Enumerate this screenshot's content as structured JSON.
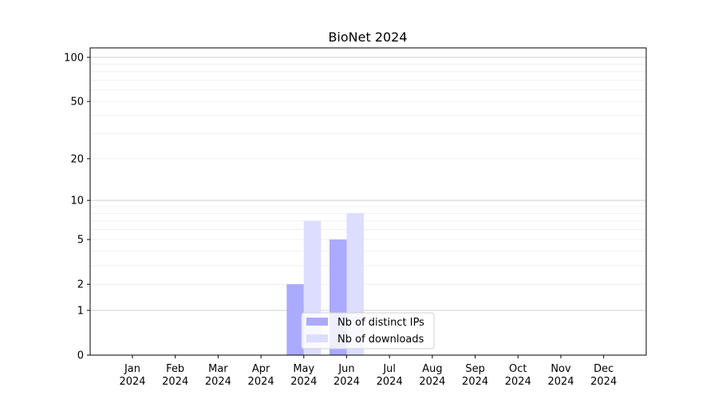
{
  "chart_data": {
    "type": "bar",
    "title": "BioNet 2024",
    "xlabel": "",
    "ylabel": "",
    "yscale": "log(1+y)",
    "ylim": [
      0,
      116
    ],
    "yticks": [
      0,
      1,
      2,
      5,
      10,
      20,
      50,
      100
    ],
    "grid": true,
    "legend_position": "lower-center",
    "categories": [
      "Jan\n2024",
      "Feb\n2024",
      "Mar\n2024",
      "Apr\n2024",
      "May\n2024",
      "Jun\n2024",
      "Jul\n2024",
      "Aug\n2024",
      "Sep\n2024",
      "Oct\n2024",
      "Nov\n2024",
      "Dec\n2024"
    ],
    "series": [
      {
        "name": "Nb of distinct IPs",
        "color": "#aaaaff",
        "values": [
          0,
          0,
          0,
          0,
          2,
          5,
          0,
          0,
          0,
          0,
          0,
          0
        ]
      },
      {
        "name": "Nb of downloads",
        "color": "#ddddff",
        "values": [
          0,
          0,
          0,
          0,
          7,
          8,
          0,
          0,
          0,
          0,
          0,
          0
        ]
      }
    ]
  }
}
